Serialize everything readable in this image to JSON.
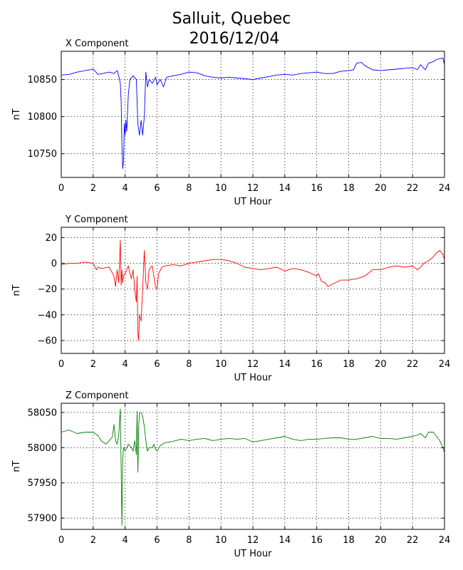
{
  "title": [
    "Salluit, Quebec",
    "2016/12/04"
  ],
  "chart_data": [
    {
      "type": "line",
      "title": "X Component",
      "xlabel": "UT Hour",
      "ylabel": "nT",
      "xlim": [
        0,
        24
      ],
      "ylim": [
        10718,
        10888
      ],
      "xticks": [
        0,
        2,
        4,
        6,
        8,
        10,
        12,
        14,
        16,
        18,
        20,
        22,
        24
      ],
      "yticks": [
        10750,
        10800,
        10850
      ],
      "grid": true,
      "color": "#0000ff",
      "series": [
        {
          "x": [
            0,
            0.5,
            1,
            1.5,
            2,
            2.3,
            2.6,
            3,
            3.3,
            3.5,
            3.6,
            3.7,
            3.75,
            3.8,
            3.85,
            3.9,
            3.95,
            4.0,
            4.05,
            4.1,
            4.2,
            4.3,
            4.5,
            4.7,
            4.8,
            4.9,
            5.0,
            5.1,
            5.2,
            5.3,
            5.4,
            5.5,
            5.7,
            5.9,
            6.0,
            6.2,
            6.4,
            6.6,
            7,
            7.5,
            8,
            8.5,
            9,
            9.5,
            10,
            10.5,
            11,
            11.5,
            12,
            12.5,
            13,
            13.5,
            14,
            14.5,
            15,
            15.5,
            16,
            16.5,
            17,
            17.5,
            18,
            18.3,
            18.5,
            18.8,
            19,
            19.5,
            20,
            20.5,
            21,
            21.5,
            22,
            22.3,
            22.5,
            22.8,
            23,
            23.3,
            23.5,
            23.7,
            23.9,
            24
          ],
          "y": [
            10856,
            10857,
            10860,
            10862,
            10864,
            10857,
            10858,
            10860,
            10858,
            10862,
            10855,
            10845,
            10820,
            10760,
            10730,
            10740,
            10790,
            10775,
            10795,
            10780,
            10830,
            10850,
            10855,
            10850,
            10790,
            10775,
            10795,
            10775,
            10800,
            10860,
            10840,
            10850,
            10845,
            10853,
            10843,
            10850,
            10840,
            10853,
            10855,
            10857,
            10860,
            10859,
            10855,
            10853,
            10852,
            10853,
            10852,
            10851,
            10850,
            10852,
            10854,
            10856,
            10857,
            10856,
            10858,
            10859,
            10860,
            10858,
            10858,
            10861,
            10862,
            10863,
            10872,
            10873,
            10869,
            10863,
            10862,
            10863,
            10864,
            10865,
            10866,
            10863,
            10870,
            10863,
            10872,
            10874,
            10877,
            10878,
            10879,
            10870
          ]
        }
      ]
    },
    {
      "type": "line",
      "title": "Y Component",
      "xlabel": "UT Hour",
      "ylabel": "nT",
      "xlim": [
        0,
        24
      ],
      "ylim": [
        -70,
        28
      ],
      "xticks": [
        0,
        2,
        4,
        6,
        8,
        10,
        12,
        14,
        16,
        18,
        20,
        22,
        24
      ],
      "yticks": [
        -60,
        -40,
        -20,
        0,
        20
      ],
      "grid": true,
      "color": "#ff0000",
      "series": [
        {
          "x": [
            0,
            0.5,
            1,
            1.5,
            2,
            2.2,
            2.3,
            2.5,
            3,
            3.3,
            3.4,
            3.5,
            3.6,
            3.7,
            3.75,
            3.8,
            3.85,
            3.9,
            4.0,
            4.1,
            4.2,
            4.3,
            4.4,
            4.5,
            4.6,
            4.7,
            4.75,
            4.8,
            4.85,
            4.9,
            5.0,
            5.1,
            5.2,
            5.3,
            5.4,
            5.5,
            5.6,
            5.7,
            5.8,
            5.9,
            6.0,
            6.1,
            6.3,
            6.5,
            7,
            7.5,
            8,
            8.5,
            9,
            9.5,
            10,
            10.5,
            11,
            11.5,
            12,
            12.5,
            13,
            13.5,
            14,
            14.5,
            15,
            15.5,
            16,
            16.1,
            16.3,
            16.5,
            16.7,
            17,
            17.5,
            18,
            18.5,
            19,
            19.5,
            20,
            20.5,
            21,
            21.5,
            22,
            22.3,
            22.5,
            22.7,
            23,
            23.3,
            23.5,
            23.7,
            23.9,
            24
          ],
          "y": [
            -1,
            0,
            0,
            1,
            0,
            -5,
            -3,
            -4,
            -3,
            -10,
            -18,
            -5,
            -15,
            18,
            -17,
            -5,
            -15,
            -10,
            -8,
            -5,
            -2,
            -8,
            -12,
            -5,
            -20,
            -30,
            -10,
            -55,
            -60,
            -40,
            -45,
            -20,
            10,
            -15,
            -20,
            -5,
            -3,
            -2,
            -10,
            -18,
            -20,
            -8,
            -3,
            -2,
            -1,
            -2,
            0,
            1,
            2,
            3,
            3,
            2,
            0,
            -3,
            -4,
            -5,
            -4,
            -3,
            -6,
            -4,
            -5,
            -7,
            -10,
            -8,
            -14,
            -15,
            -18,
            -16,
            -13,
            -13,
            -12,
            -10,
            -5,
            -5,
            -3,
            -2,
            -3,
            -2,
            -5,
            -3,
            0,
            2,
            5,
            8,
            10,
            7,
            3
          ]
        }
      ]
    },
    {
      "type": "line",
      "title": "Z Component",
      "xlabel": "UT Hour",
      "ylabel": "nT",
      "xlim": [
        0,
        24
      ],
      "ylim": [
        57884,
        58063
      ],
      "xticks": [
        0,
        2,
        4,
        6,
        8,
        10,
        12,
        14,
        16,
        18,
        20,
        22,
        24
      ],
      "yticks": [
        57900,
        57950,
        58000,
        58050
      ],
      "grid": true,
      "color": "#008000",
      "series": [
        {
          "x": [
            0,
            0.5,
            1,
            1.5,
            2,
            2.3,
            2.5,
            2.8,
            3,
            3.2,
            3.3,
            3.4,
            3.5,
            3.6,
            3.7,
            3.75,
            3.8,
            3.85,
            3.9,
            4.0,
            4.2,
            4.4,
            4.5,
            4.6,
            4.7,
            4.75,
            4.8,
            4.85,
            4.9,
            5.0,
            5.1,
            5.2,
            5.3,
            5.4,
            5.5,
            5.6,
            5.7,
            5.8,
            5.9,
            6.0,
            6.2,
            6.5,
            7,
            7.5,
            8,
            8.5,
            9,
            9.5,
            10,
            10.5,
            11,
            11.5,
            12,
            12.5,
            13,
            13.5,
            14,
            14.5,
            15,
            15.5,
            16,
            16.5,
            17,
            17.5,
            18,
            18.5,
            19,
            19.5,
            20,
            20.5,
            21,
            21.5,
            22,
            22.3,
            22.5,
            22.8,
            23,
            23.3,
            23.5,
            23.7,
            23.9,
            24
          ],
          "y": [
            58022,
            58025,
            58020,
            58022,
            58022,
            58017,
            58010,
            58005,
            58010,
            58015,
            58033,
            58010,
            58005,
            58018,
            58055,
            57970,
            57890,
            57985,
            58000,
            57995,
            58005,
            58000,
            57995,
            58010,
            57990,
            58052,
            57965,
            58030,
            58050,
            58050,
            58045,
            58030,
            58010,
            57995,
            58000,
            58000,
            58000,
            58005,
            57998,
            57995,
            58003,
            58007,
            58009,
            58012,
            58010,
            58012,
            58013,
            58010,
            58012,
            58013,
            58012,
            58013,
            58008,
            58010,
            58012,
            58014,
            58016,
            58012,
            58010,
            58012,
            58012,
            58013,
            58014,
            58014,
            58012,
            58012,
            58014,
            58016,
            58013,
            58013,
            58012,
            58014,
            58016,
            58018,
            58020,
            58014,
            58022,
            58022,
            58016,
            58010,
            58000,
            57993
          ]
        }
      ]
    }
  ]
}
